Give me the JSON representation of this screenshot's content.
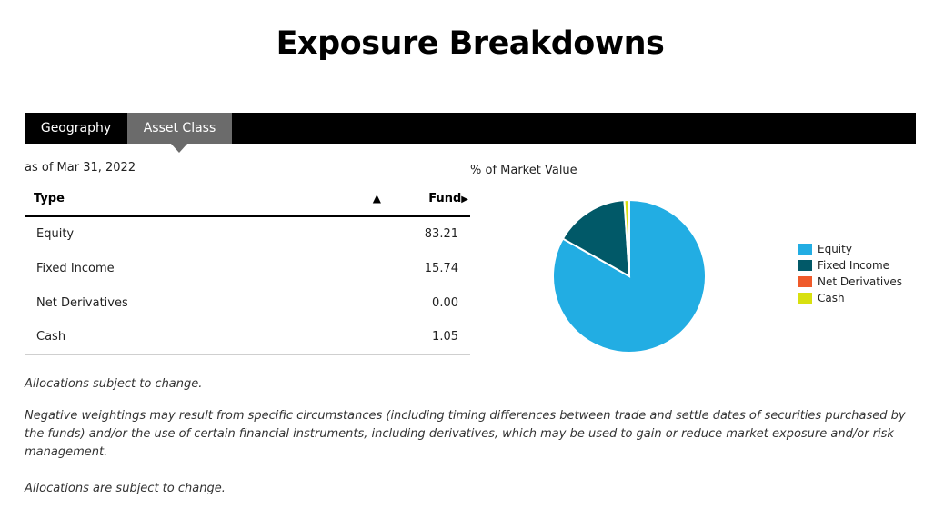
{
  "page": {
    "title": "Exposure Breakdowns"
  },
  "tabs": [
    {
      "label": "Geography",
      "active": false
    },
    {
      "label": "Asset Class",
      "active": true
    }
  ],
  "as_of": "as of Mar 31, 2022",
  "table": {
    "headers": {
      "type": "Type",
      "sort_icon": "▲",
      "fund": "Fund",
      "fund_icon": "▶"
    },
    "rows": [
      {
        "type": "Equity",
        "fund": "83.21"
      },
      {
        "type": "Fixed Income",
        "fund": "15.74"
      },
      {
        "type": "Net Derivatives",
        "fund": "0.00"
      },
      {
        "type": "Cash",
        "fund": "1.05"
      }
    ]
  },
  "chart_data": {
    "type": "pie",
    "title": "% of Market Value",
    "legend_position": "right",
    "series": [
      {
        "name": "Equity",
        "value": 83.21,
        "color": "#22ADE3"
      },
      {
        "name": "Fixed Income",
        "value": 15.74,
        "color": "#015968"
      },
      {
        "name": "Net Derivatives",
        "value": 0.0,
        "color": "#EF5A2A"
      },
      {
        "name": "Cash",
        "value": 1.05,
        "color": "#D8E00F"
      }
    ]
  },
  "notes": {
    "note1": "Allocations subject to change.",
    "note2": "Negative weightings may result from specific circumstances (including timing differences between trade and settle dates of securities purchased by the funds) and/or the use of certain financial instruments, including derivatives, which may be used to gain or reduce market exposure and/or risk management.",
    "note3": "Allocations are subject to change."
  }
}
